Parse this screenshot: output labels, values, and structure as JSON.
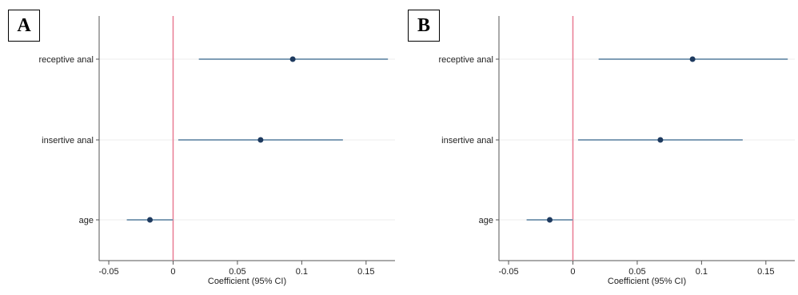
{
  "panels": [
    {
      "label": "A"
    },
    {
      "label": "B"
    }
  ],
  "chart_data": [
    {
      "type": "scatter",
      "subtype": "coefficient-plot",
      "panel": "A",
      "xlabel": "Coefficient (95% CI)",
      "ylabel": "",
      "xlim": [
        -0.055,
        0.17
      ],
      "xticks": [
        -0.05,
        0,
        0.05,
        0.1,
        0.15
      ],
      "xtick_labels": [
        "-0.05",
        "0",
        "0.05",
        "0.1",
        "0.15"
      ],
      "reference_line": 0,
      "grid": "horizontal",
      "categories": [
        "receptive anal",
        "insertive anal",
        "age"
      ],
      "estimates": [
        0.093,
        0.068,
        -0.018
      ],
      "ci_lower": [
        0.02,
        0.004,
        -0.036
      ],
      "ci_upper": [
        0.167,
        0.132,
        0.0
      ],
      "colors": {
        "point": "#1e3a5f",
        "ci": "#7f9db5",
        "reference": "#e87b93",
        "axis": "#555555"
      }
    },
    {
      "type": "scatter",
      "subtype": "coefficient-plot",
      "panel": "B",
      "xlabel": "Coefficient (95% CI)",
      "ylabel": "",
      "xlim": [
        -0.055,
        0.17
      ],
      "xticks": [
        -0.05,
        0,
        0.05,
        0.1,
        0.15
      ],
      "xtick_labels": [
        "-0.05",
        "0",
        "0.05",
        "0.1",
        "0.15"
      ],
      "reference_line": 0,
      "grid": "horizontal",
      "categories": [
        "receptive anal",
        "insertive anal",
        "age"
      ],
      "estimates": [
        0.093,
        0.068,
        -0.018
      ],
      "ci_lower": [
        0.02,
        0.004,
        -0.036
      ],
      "ci_upper": [
        0.167,
        0.132,
        0.0
      ],
      "colors": {
        "point": "#1e3a5f",
        "ci": "#7f9db5",
        "reference": "#e87b93",
        "axis": "#555555"
      }
    }
  ]
}
